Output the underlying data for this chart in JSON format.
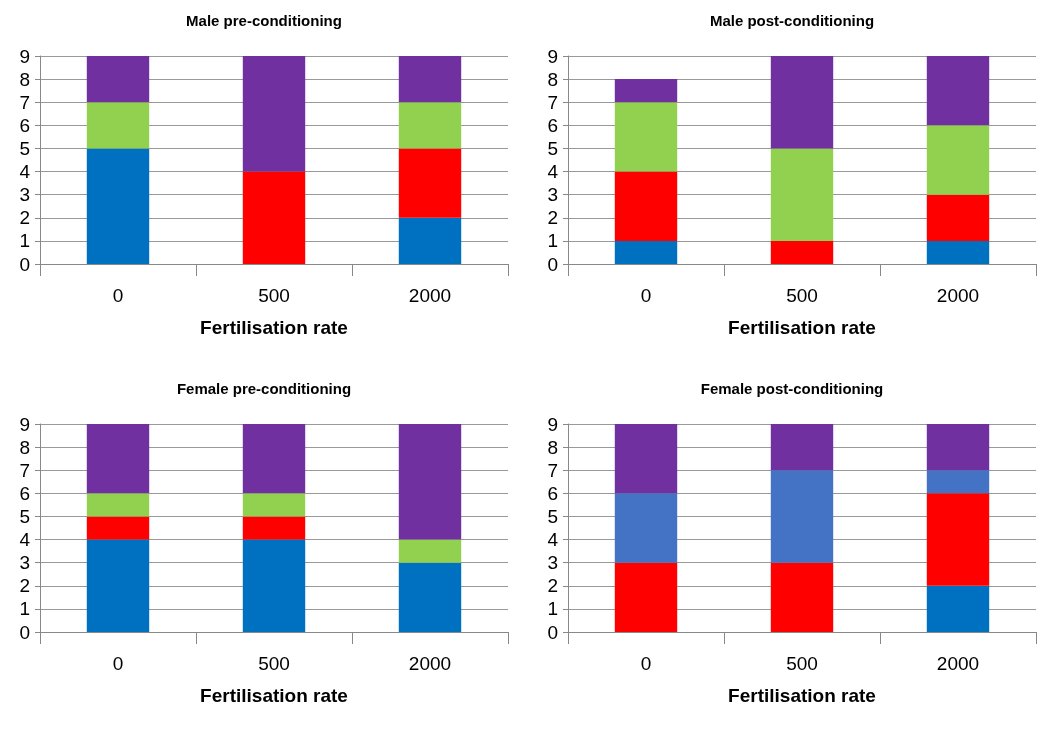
{
  "chart_data": [
    {
      "type": "bar",
      "title": "Male pre-conditioning",
      "xlabel": "Fertilisation rate",
      "categories": [
        "0",
        "500",
        "2000"
      ],
      "stacked": true,
      "ylim": [
        0,
        9
      ],
      "yticks": [
        0,
        1,
        2,
        3,
        4,
        5,
        6,
        7,
        8,
        9
      ],
      "grid": "y",
      "series": [
        {
          "color": "#0070c0",
          "values": [
            5,
            0,
            2
          ]
        },
        {
          "color": "#ff0000",
          "values": [
            0,
            4,
            3
          ]
        },
        {
          "color": "#92d050",
          "values": [
            2,
            0,
            2
          ]
        },
        {
          "color": "#7030a0",
          "values": [
            2,
            5,
            2
          ]
        }
      ]
    },
    {
      "type": "bar",
      "title": "Male post-conditioning",
      "xlabel": "Fertilisation rate",
      "categories": [
        "0",
        "500",
        "2000"
      ],
      "stacked": true,
      "ylim": [
        0,
        9
      ],
      "yticks": [
        0,
        1,
        2,
        3,
        4,
        5,
        6,
        7,
        8,
        9
      ],
      "grid": "y",
      "series": [
        {
          "color": "#0070c0",
          "values": [
            1,
            0,
            1
          ]
        },
        {
          "color": "#ff0000",
          "values": [
            3,
            1,
            2
          ]
        },
        {
          "color": "#92d050",
          "values": [
            3,
            4,
            3
          ]
        },
        {
          "color": "#7030a0",
          "values": [
            1,
            4,
            3
          ]
        }
      ]
    },
    {
      "type": "bar",
      "title": "Female pre-conditioning",
      "xlabel": "Fertilisation rate",
      "categories": [
        "0",
        "500",
        "2000"
      ],
      "stacked": true,
      "ylim": [
        0,
        9
      ],
      "yticks": [
        0,
        1,
        2,
        3,
        4,
        5,
        6,
        7,
        8,
        9
      ],
      "grid": "y",
      "series": [
        {
          "color": "#0070c0",
          "values": [
            4,
            4,
            3
          ]
        },
        {
          "color": "#ff0000",
          "values": [
            1,
            1,
            0
          ]
        },
        {
          "color": "#92d050",
          "values": [
            1,
            1,
            1
          ]
        },
        {
          "color": "#7030a0",
          "values": [
            3,
            3,
            5
          ]
        }
      ]
    },
    {
      "type": "bar",
      "title": "Female post-conditioning",
      "xlabel": "Fertilisation rate",
      "categories": [
        "0",
        "500",
        "2000"
      ],
      "stacked": true,
      "ylim": [
        0,
        9
      ],
      "yticks": [
        0,
        1,
        2,
        3,
        4,
        5,
        6,
        7,
        8,
        9
      ],
      "grid": "y",
      "series": [
        {
          "color": "#0070c0",
          "values": [
            0,
            0,
            2
          ]
        },
        {
          "color": "#ff0000",
          "values": [
            3,
            3,
            4
          ]
        },
        {
          "color": "#4472c4",
          "values": [
            3,
            4,
            1
          ]
        },
        {
          "color": "#7030a0",
          "values": [
            3,
            2,
            2
          ]
        }
      ]
    }
  ]
}
